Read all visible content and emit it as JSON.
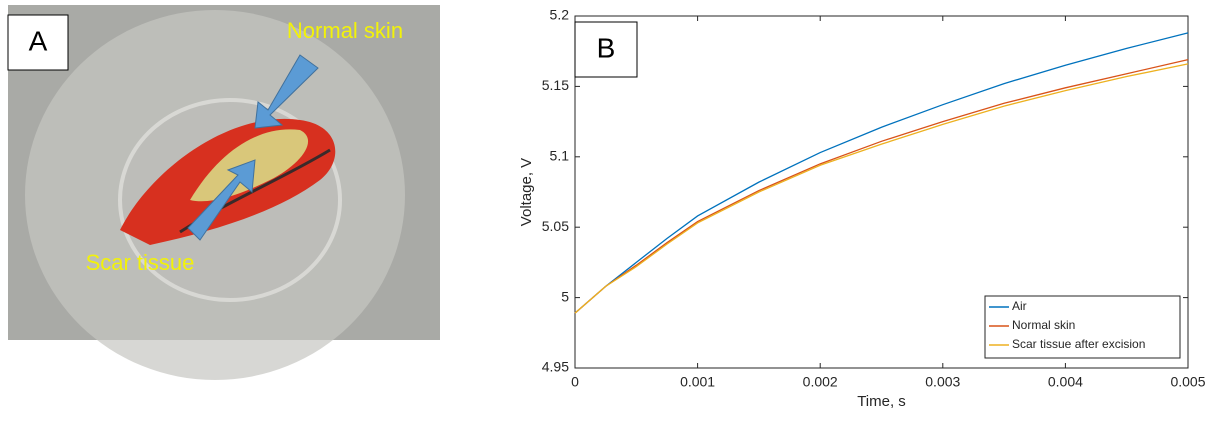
{
  "panel_a": {
    "label": "A",
    "annotations": [
      "Normal skin",
      "Scar tissue"
    ]
  },
  "chart_data": {
    "type": "line",
    "label": "B",
    "xlabel": "Time, s",
    "ylabel": "Voltage, V",
    "x": [
      0,
      0.00025,
      0.0005,
      0.00075,
      0.001,
      0.0015,
      0.002,
      0.0025,
      0.003,
      0.0035,
      0.004,
      0.0045,
      0.005
    ],
    "series": [
      {
        "name": "Air",
        "color": "#0072bd",
        "values": [
          4.989,
          5.008,
          5.025,
          5.042,
          5.058,
          5.082,
          5.103,
          5.121,
          5.137,
          5.152,
          5.165,
          5.177,
          5.188
        ]
      },
      {
        "name": "Normal skin",
        "color": "#d95319",
        "values": [
          4.989,
          5.008,
          5.023,
          5.039,
          5.054,
          5.076,
          5.095,
          5.111,
          5.125,
          5.138,
          5.149,
          5.159,
          5.169
        ]
      },
      {
        "name": "Scar tissue after excision",
        "color": "#edb120",
        "values": [
          4.989,
          5.008,
          5.022,
          5.038,
          5.053,
          5.075,
          5.094,
          5.109,
          5.123,
          5.136,
          5.147,
          5.157,
          5.166
        ]
      }
    ],
    "xlim": [
      0,
      0.005
    ],
    "xticks": [
      0,
      0.001,
      0.002,
      0.003,
      0.004,
      0.005
    ],
    "ylim": [
      4.95,
      5.2
    ],
    "yticks": [
      4.95,
      5,
      5.05,
      5.1,
      5.15,
      5.2
    ],
    "grid": false,
    "legend": "lower-right"
  }
}
